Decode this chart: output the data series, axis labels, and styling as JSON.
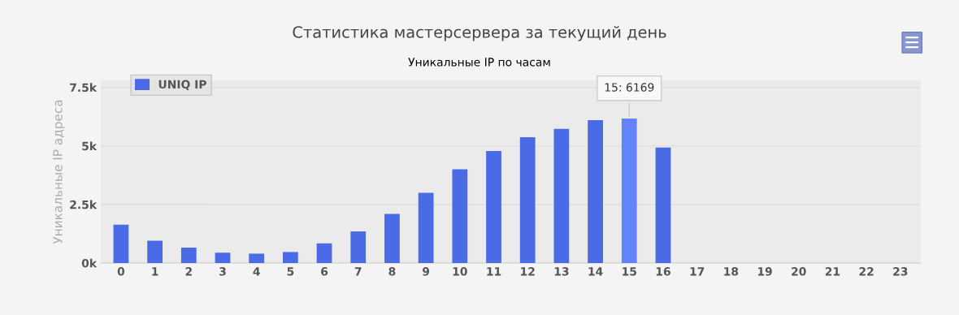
{
  "chart_data": {
    "type": "bar",
    "title": "Статистика мастерсервера за текущий день",
    "subtitle": "Уникальные IP по часам",
    "ylabel": "Уникальные IP адреса",
    "categories": [
      "0",
      "1",
      "2",
      "3",
      "4",
      "5",
      "6",
      "7",
      "8",
      "9",
      "10",
      "11",
      "12",
      "13",
      "14",
      "15",
      "16",
      "17",
      "18",
      "19",
      "20",
      "21",
      "22",
      "23"
    ],
    "series": [
      {
        "name": "UNIQ IP",
        "color": "#4a6ae6",
        "values": [
          1640,
          950,
          660,
          440,
          400,
          470,
          840,
          1350,
          2100,
          3000,
          4000,
          4780,
          5370,
          5730,
          6100,
          6169,
          4930,
          0,
          0,
          0,
          0,
          0,
          0,
          0
        ],
        "colors": [
          "#4a6ae6",
          "#4a6ae6",
          "#4a6ae6",
          "#4a6ae6",
          "#4a6ae6",
          "#4a6ae6",
          "#4a6ae6",
          "#4a6ae6",
          "#4a6ae6",
          "#4a6ae6",
          "#4a6ae6",
          "#4a6ae6",
          "#4a6ae6",
          "#4a6ae6",
          "#4a6ae6",
          "#6482fc",
          "#4a6ae6",
          "#4a6ae6",
          "#4a6ae6",
          "#4a6ae6",
          "#4a6ae6",
          "#4a6ae6",
          "#4a6ae6",
          "#4a6ae6"
        ]
      }
    ],
    "ylim": [
      0,
      7800
    ],
    "yticks": [
      {
        "value": 0,
        "label": "0k"
      },
      {
        "value": 2500,
        "label": "2.5k"
      },
      {
        "value": 5000,
        "label": "5k"
      },
      {
        "value": 7500,
        "label": "7.5k"
      }
    ],
    "grid": "y",
    "legend": "top left",
    "annotations": [
      {
        "text": "15: 6169",
        "x": "15",
        "y": 6169
      }
    ]
  }
}
